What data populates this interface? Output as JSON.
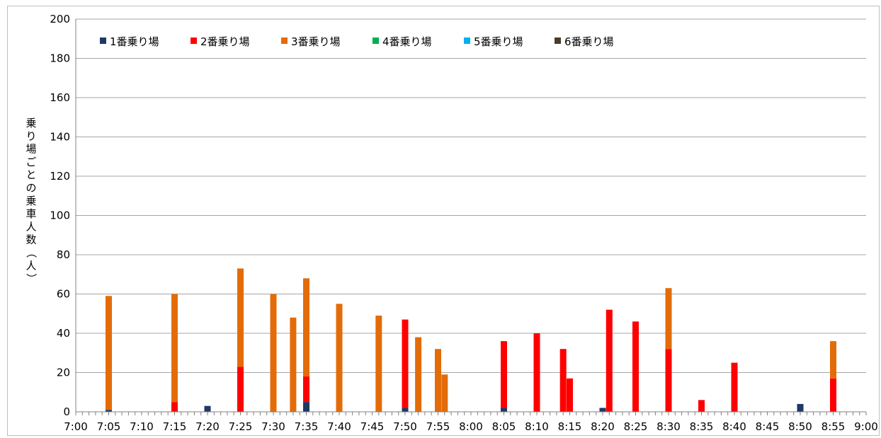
{
  "chart_data": {
    "type": "bar",
    "stacked": true,
    "ylabel": "乗り場ごとの乗車人数（人）",
    "ylim": [
      0,
      200
    ],
    "yticks": [
      0,
      20,
      40,
      60,
      80,
      100,
      120,
      140,
      160,
      180,
      200
    ],
    "grid": true,
    "legend_position": "top-left",
    "x_tick_labels": [
      "7:00",
      "7:05",
      "7:10",
      "7:15",
      "7:20",
      "7:25",
      "7:30",
      "7:35",
      "7:40",
      "7:45",
      "7:50",
      "7:55",
      "8:00",
      "8:05",
      "8:10",
      "8:15",
      "8:20",
      "8:25",
      "8:30",
      "8:35",
      "8:40",
      "8:45",
      "8:50",
      "8:55",
      "9:00"
    ],
    "x_minutes": [
      0,
      5,
      10,
      15,
      20,
      25,
      30,
      35,
      40,
      45,
      50,
      55,
      60,
      65,
      70,
      75,
      80,
      85,
      90,
      95,
      100,
      105,
      110,
      115,
      120
    ],
    "series": [
      {
        "name": "1番乗り場",
        "color": "#1f3864",
        "points": [
          [
            5,
            1
          ],
          [
            20,
            3
          ],
          [
            35,
            5
          ],
          [
            50,
            2
          ],
          [
            65,
            2
          ],
          [
            80,
            2
          ],
          [
            110,
            4
          ]
        ]
      },
      {
        "name": "2番乗り場",
        "color": "#ff0000",
        "points": [
          [
            15,
            5
          ],
          [
            25,
            23
          ],
          [
            35,
            18
          ],
          [
            50,
            47
          ],
          [
            65,
            36
          ],
          [
            70,
            40
          ],
          [
            74,
            32
          ],
          [
            75,
            17
          ],
          [
            81,
            52
          ],
          [
            85,
            46
          ],
          [
            90,
            32
          ],
          [
            95,
            6
          ],
          [
            100,
            25
          ],
          [
            115,
            17
          ]
        ]
      },
      {
        "name": "3番乗り場",
        "color": "#e36c09",
        "points": [
          [
            5,
            59
          ],
          [
            15,
            60
          ],
          [
            25,
            73
          ],
          [
            30,
            60
          ],
          [
            33,
            48
          ],
          [
            35,
            68
          ],
          [
            40,
            55
          ],
          [
            46,
            49
          ],
          [
            52,
            38
          ],
          [
            55,
            32
          ],
          [
            56,
            19
          ],
          [
            90,
            63
          ],
          [
            115,
            36
          ]
        ]
      },
      {
        "name": "4番乗り場",
        "color": "#00b050",
        "points": []
      },
      {
        "name": "5番乗り場",
        "color": "#00b0f0",
        "points": []
      },
      {
        "name": "6番乗り場",
        "color": "#4a3c28",
        "points": []
      }
    ]
  }
}
